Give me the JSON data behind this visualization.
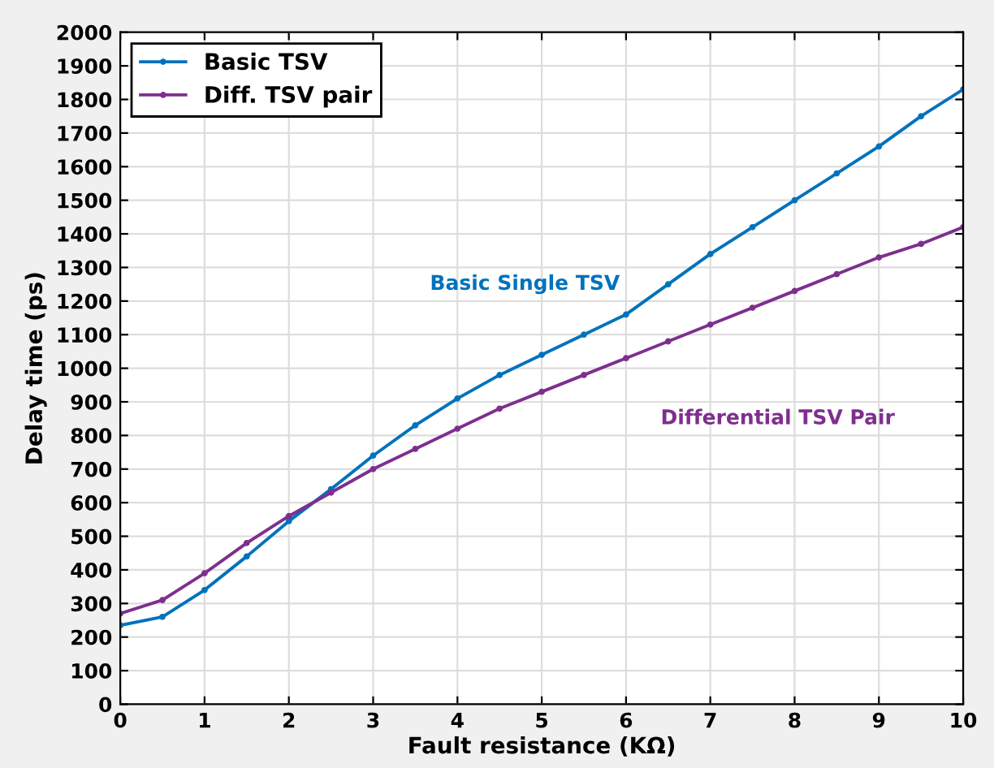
{
  "chart_data": {
    "type": "line",
    "xlabel": "Fault resistance (KΩ)",
    "ylabel": "Delay time (ps)",
    "x": [
      0,
      0.5,
      1,
      1.5,
      2,
      2.5,
      3,
      3.5,
      4,
      4.5,
      5,
      5.5,
      6,
      6.5,
      7,
      7.5,
      8,
      8.5,
      9,
      9.5,
      10
    ],
    "series": [
      {
        "name": "Basic TSV",
        "color": "#0072bd",
        "values": [
          235,
          260,
          340,
          440,
          545,
          640,
          740,
          830,
          910,
          980,
          1040,
          1100,
          1160,
          1250,
          1340,
          1420,
          1500,
          1580,
          1660,
          1750,
          1830
        ]
      },
      {
        "name": "Diff. TSV pair",
        "color": "#7e2f8e",
        "values": [
          270,
          310,
          390,
          480,
          560,
          630,
          700,
          760,
          820,
          880,
          930,
          980,
          1030,
          1080,
          1130,
          1180,
          1230,
          1280,
          1330,
          1370,
          1420
        ]
      }
    ],
    "annotations": [
      "Basic Single TSV",
      "Differential TSV Pair"
    ],
    "xlim": [
      0,
      10
    ],
    "xticks": [
      0,
      1,
      2,
      3,
      4,
      5,
      6,
      7,
      8,
      9,
      10
    ],
    "ylim": [
      0,
      2000
    ],
    "yticks": [
      0,
      100,
      200,
      300,
      400,
      500,
      600,
      700,
      800,
      900,
      1000,
      1100,
      1200,
      1300,
      1400,
      1500,
      1600,
      1700,
      1800,
      1900,
      2000
    ],
    "grid": true,
    "legend": "top left",
    "marker": "circle",
    "line_style": "solid"
  }
}
